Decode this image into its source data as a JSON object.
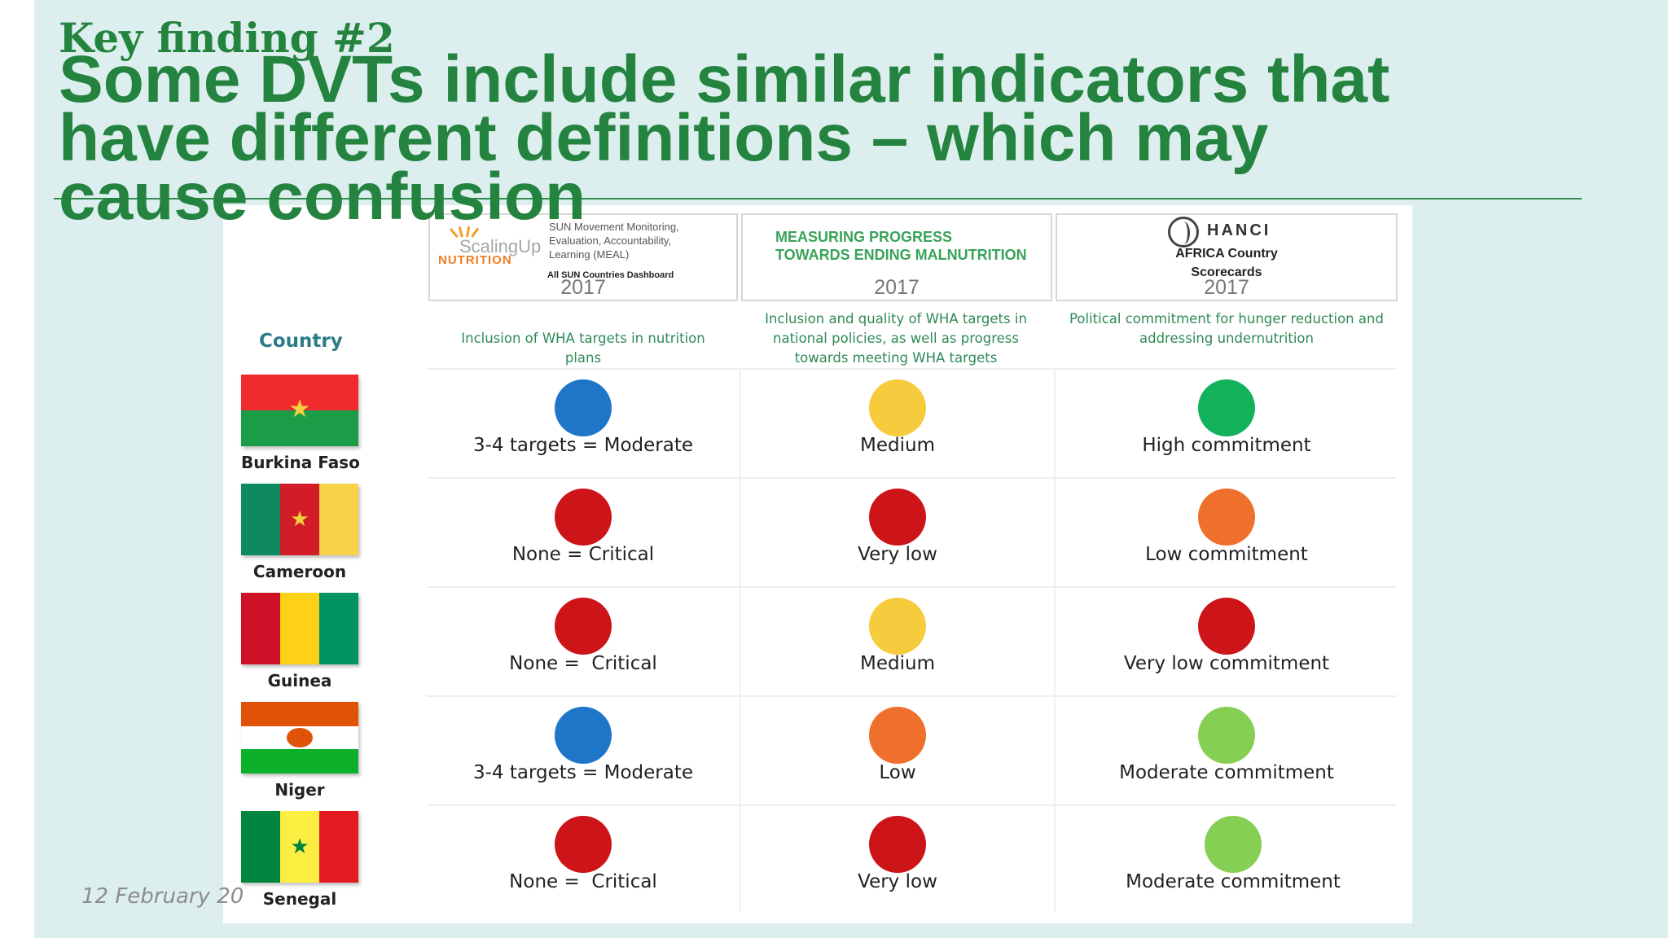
{
  "slide": {
    "kicker": "Key finding #2",
    "headline": "Some DVTs include similar indicators that\nhave different definitions – which may\ncause confusion",
    "footer_date": "12 February 20"
  },
  "table": {
    "tools": [
      {
        "logo_text_1": "ScalingUp",
        "logo_text_2": "NUTRITION",
        "description": "SUN Movement Monitoring, Evaluation, Accountability, Learning (MEAL)",
        "subtitle": "All SUN Countries Dashboard",
        "year": "2017",
        "indicator": "Inclusion of WHA targets in nutrition plans"
      },
      {
        "title": "MEASURING PROGRESS\nTOWARDS ENDING MALNUTRITION",
        "year": "2017",
        "indicator": "Inclusion and quality of WHA targets in national policies, as well as progress towards meeting WHA targets"
      },
      {
        "logo_text": "HANCI",
        "subtitle": "AFRICA Country\nScorecards",
        "year": "2017",
        "indicator": "Political commitment for hunger reduction and addressing undernutrition"
      }
    ],
    "country_header": "Country",
    "colors": {
      "blue": "#1f76c9",
      "yellow": "#f6cc3e",
      "green": "#12b25a",
      "red": "#cc1419",
      "orange": "#ef6f2c",
      "light_green": "#86cf55"
    },
    "rows": [
      {
        "country": "Burkina Faso",
        "cells": [
          {
            "label": "3-4 targets = Moderate",
            "color": "#1f76c9"
          },
          {
            "label": "Medium",
            "color": "#f6cc3e"
          },
          {
            "label": "High commitment",
            "color": "#12b25a"
          }
        ]
      },
      {
        "country": "Cameroon",
        "cells": [
          {
            "label": "None = Critical",
            "color": "#cc1419"
          },
          {
            "label": "Very low",
            "color": "#cc1419"
          },
          {
            "label": "Low commitment",
            "color": "#ef6f2c"
          }
        ]
      },
      {
        "country": "Guinea",
        "cells": [
          {
            "label": "None =  Critical",
            "color": "#cc1419"
          },
          {
            "label": "Medium",
            "color": "#f6cc3e"
          },
          {
            "label": "Very low commitment",
            "color": "#cc1419"
          }
        ]
      },
      {
        "country": "Niger",
        "cells": [
          {
            "label": "3-4 targets = Moderate",
            "color": "#1f76c9"
          },
          {
            "label": "Low",
            "color": "#ef6f2c"
          },
          {
            "label": "Moderate commitment",
            "color": "#86cf55"
          }
        ]
      },
      {
        "country": "Senegal",
        "cells": [
          {
            "label": "None =  Critical",
            "color": "#cc1419"
          },
          {
            "label": "Very low",
            "color": "#cc1419"
          },
          {
            "label": "Moderate commitment",
            "color": "#86cf55"
          }
        ]
      }
    ]
  }
}
